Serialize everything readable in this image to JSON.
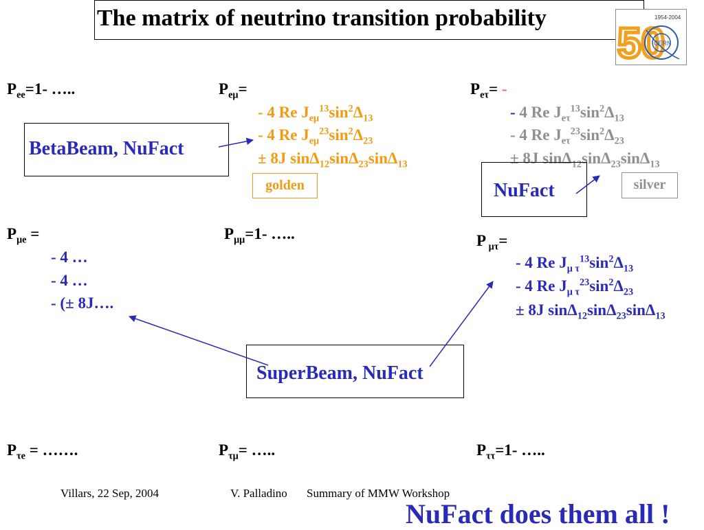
{
  "slide": {
    "title": "The matrix of neutrino transition probability",
    "logo": {
      "years": "1954-2004",
      "brand": "CERN",
      "number": "50"
    }
  },
  "row1": {
    "pee": {
      "p": "P",
      "sub": "ee",
      "rest": "=1- ….."
    },
    "pemu": {
      "p": "P",
      "sub": "eμ",
      "rest": "=",
      "line1": {
        "a": "- 4 Re J",
        "sub": "eμ",
        "sup": "13",
        "b": "sin",
        "sup2": "2",
        "c": "Δ",
        "sub2": "13"
      },
      "line2": {
        "a": "- 4 Re J",
        "sub": "eμ",
        "sup": "23",
        "b": "sin",
        "sup2": "2",
        "c": "Δ",
        "sub2": "23"
      },
      "line3": {
        "a": "± 8J sinΔ",
        "s1": "12",
        "b": "sinΔ",
        "s2": "23",
        "c": "sinΔ",
        "s3": "13"
      },
      "tag": "golden"
    },
    "petau": {
      "p": "P",
      "sub": "eτ",
      "rest": "= ",
      "dash": "-",
      "line1": {
        "dash": "- ",
        "a": "4 Re J",
        "sub": "eτ",
        "sup": "13",
        "b": "sin",
        "sup2": "2",
        "c": "Δ",
        "sub2": "13"
      },
      "line2": {
        "a": "- 4 Re J",
        "sub": "eτ",
        "sup": "23",
        "b": "sin",
        "sup2": "2",
        "c": "Δ",
        "sub2": "23"
      },
      "line3": {
        "a": "± 8J sinΔ",
        "s1": "12",
        "b": "sinΔ",
        "s2": "23",
        "c": "sinΔ",
        "s3": "13"
      },
      "tag": "silver"
    },
    "betabeam_box": "BetaBeam, NuFact",
    "nufact_box": "NuFact"
  },
  "row2": {
    "pmue": {
      "p": "P",
      "sub": "μe",
      "rest": " =",
      "l1": "- 4 …",
      "l2": "- 4 …",
      "l3": "- (± 8J…."
    },
    "pmumu": {
      "p": "P",
      "sub": "μμ",
      "rest": "=1- ….."
    },
    "pmutau": {
      "p": "P",
      "sub": " μτ",
      "rest": "=",
      "line1": {
        "a": "- 4 Re J",
        "sub": "μ τ",
        "sup": "13",
        "b": "sin",
        "sup2": "2",
        "c": "Δ",
        "sub2": "13"
      },
      "line2": {
        "a": "- 4 Re J",
        "sub": "μ τ",
        "sup": "23",
        "b": "sin",
        "sup2": "2",
        "c": "Δ",
        "sub2": "23"
      },
      "line3": {
        "a": "± 8J sinΔ",
        "s1": "12",
        "b": "sinΔ",
        "s2": "23",
        "c": "sinΔ",
        "s3": "13"
      }
    },
    "superbeam_box": "SuperBeam, NuFact"
  },
  "row3": {
    "ptaue": {
      "p": "P",
      "sub": "τe",
      "rest": " = ……."
    },
    "ptaumu": {
      "p": "P",
      "sub": "τμ",
      "rest": "= ….."
    },
    "ptautau": {
      "p": "P",
      "sub": "ττ",
      "rest": "=1- ….."
    }
  },
  "footer": {
    "location_date": "Villars, 22 Sep, 2004",
    "author": "V. Palladino",
    "talk": "Summary of MMW Workshop",
    "conclusion": "NuFact does them all !"
  },
  "colors": {
    "blue": "#2a2ab8",
    "orange": "#f29a12",
    "grey": "#8f8f8f"
  }
}
